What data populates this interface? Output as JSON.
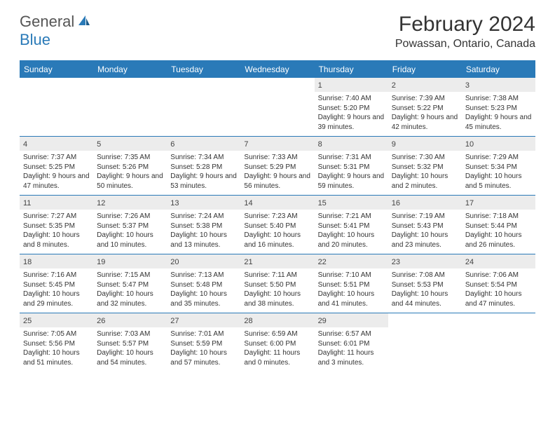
{
  "logo": {
    "text1": "General",
    "text2": "Blue"
  },
  "title": "February 2024",
  "location": "Powassan, Ontario, Canada",
  "colors": {
    "accent": "#2a7ab8",
    "daynum_bg": "#ececec",
    "text": "#333333",
    "logo_gray": "#555555"
  },
  "weekdays": [
    "Sunday",
    "Monday",
    "Tuesday",
    "Wednesday",
    "Thursday",
    "Friday",
    "Saturday"
  ],
  "weeks": [
    [
      {
        "empty": true
      },
      {
        "empty": true
      },
      {
        "empty": true
      },
      {
        "empty": true
      },
      {
        "num": "1",
        "sunrise": "Sunrise: 7:40 AM",
        "sunset": "Sunset: 5:20 PM",
        "daylight": "Daylight: 9 hours and 39 minutes."
      },
      {
        "num": "2",
        "sunrise": "Sunrise: 7:39 AM",
        "sunset": "Sunset: 5:22 PM",
        "daylight": "Daylight: 9 hours and 42 minutes."
      },
      {
        "num": "3",
        "sunrise": "Sunrise: 7:38 AM",
        "sunset": "Sunset: 5:23 PM",
        "daylight": "Daylight: 9 hours and 45 minutes."
      }
    ],
    [
      {
        "num": "4",
        "sunrise": "Sunrise: 7:37 AM",
        "sunset": "Sunset: 5:25 PM",
        "daylight": "Daylight: 9 hours and 47 minutes."
      },
      {
        "num": "5",
        "sunrise": "Sunrise: 7:35 AM",
        "sunset": "Sunset: 5:26 PM",
        "daylight": "Daylight: 9 hours and 50 minutes."
      },
      {
        "num": "6",
        "sunrise": "Sunrise: 7:34 AM",
        "sunset": "Sunset: 5:28 PM",
        "daylight": "Daylight: 9 hours and 53 minutes."
      },
      {
        "num": "7",
        "sunrise": "Sunrise: 7:33 AM",
        "sunset": "Sunset: 5:29 PM",
        "daylight": "Daylight: 9 hours and 56 minutes."
      },
      {
        "num": "8",
        "sunrise": "Sunrise: 7:31 AM",
        "sunset": "Sunset: 5:31 PM",
        "daylight": "Daylight: 9 hours and 59 minutes."
      },
      {
        "num": "9",
        "sunrise": "Sunrise: 7:30 AM",
        "sunset": "Sunset: 5:32 PM",
        "daylight": "Daylight: 10 hours and 2 minutes."
      },
      {
        "num": "10",
        "sunrise": "Sunrise: 7:29 AM",
        "sunset": "Sunset: 5:34 PM",
        "daylight": "Daylight: 10 hours and 5 minutes."
      }
    ],
    [
      {
        "num": "11",
        "sunrise": "Sunrise: 7:27 AM",
        "sunset": "Sunset: 5:35 PM",
        "daylight": "Daylight: 10 hours and 8 minutes."
      },
      {
        "num": "12",
        "sunrise": "Sunrise: 7:26 AM",
        "sunset": "Sunset: 5:37 PM",
        "daylight": "Daylight: 10 hours and 10 minutes."
      },
      {
        "num": "13",
        "sunrise": "Sunrise: 7:24 AM",
        "sunset": "Sunset: 5:38 PM",
        "daylight": "Daylight: 10 hours and 13 minutes."
      },
      {
        "num": "14",
        "sunrise": "Sunrise: 7:23 AM",
        "sunset": "Sunset: 5:40 PM",
        "daylight": "Daylight: 10 hours and 16 minutes."
      },
      {
        "num": "15",
        "sunrise": "Sunrise: 7:21 AM",
        "sunset": "Sunset: 5:41 PM",
        "daylight": "Daylight: 10 hours and 20 minutes."
      },
      {
        "num": "16",
        "sunrise": "Sunrise: 7:19 AM",
        "sunset": "Sunset: 5:43 PM",
        "daylight": "Daylight: 10 hours and 23 minutes."
      },
      {
        "num": "17",
        "sunrise": "Sunrise: 7:18 AM",
        "sunset": "Sunset: 5:44 PM",
        "daylight": "Daylight: 10 hours and 26 minutes."
      }
    ],
    [
      {
        "num": "18",
        "sunrise": "Sunrise: 7:16 AM",
        "sunset": "Sunset: 5:45 PM",
        "daylight": "Daylight: 10 hours and 29 minutes."
      },
      {
        "num": "19",
        "sunrise": "Sunrise: 7:15 AM",
        "sunset": "Sunset: 5:47 PM",
        "daylight": "Daylight: 10 hours and 32 minutes."
      },
      {
        "num": "20",
        "sunrise": "Sunrise: 7:13 AM",
        "sunset": "Sunset: 5:48 PM",
        "daylight": "Daylight: 10 hours and 35 minutes."
      },
      {
        "num": "21",
        "sunrise": "Sunrise: 7:11 AM",
        "sunset": "Sunset: 5:50 PM",
        "daylight": "Daylight: 10 hours and 38 minutes."
      },
      {
        "num": "22",
        "sunrise": "Sunrise: 7:10 AM",
        "sunset": "Sunset: 5:51 PM",
        "daylight": "Daylight: 10 hours and 41 minutes."
      },
      {
        "num": "23",
        "sunrise": "Sunrise: 7:08 AM",
        "sunset": "Sunset: 5:53 PM",
        "daylight": "Daylight: 10 hours and 44 minutes."
      },
      {
        "num": "24",
        "sunrise": "Sunrise: 7:06 AM",
        "sunset": "Sunset: 5:54 PM",
        "daylight": "Daylight: 10 hours and 47 minutes."
      }
    ],
    [
      {
        "num": "25",
        "sunrise": "Sunrise: 7:05 AM",
        "sunset": "Sunset: 5:56 PM",
        "daylight": "Daylight: 10 hours and 51 minutes."
      },
      {
        "num": "26",
        "sunrise": "Sunrise: 7:03 AM",
        "sunset": "Sunset: 5:57 PM",
        "daylight": "Daylight: 10 hours and 54 minutes."
      },
      {
        "num": "27",
        "sunrise": "Sunrise: 7:01 AM",
        "sunset": "Sunset: 5:59 PM",
        "daylight": "Daylight: 10 hours and 57 minutes."
      },
      {
        "num": "28",
        "sunrise": "Sunrise: 6:59 AM",
        "sunset": "Sunset: 6:00 PM",
        "daylight": "Daylight: 11 hours and 0 minutes."
      },
      {
        "num": "29",
        "sunrise": "Sunrise: 6:57 AM",
        "sunset": "Sunset: 6:01 PM",
        "daylight": "Daylight: 11 hours and 3 minutes."
      },
      {
        "empty": true
      },
      {
        "empty": true
      }
    ]
  ]
}
